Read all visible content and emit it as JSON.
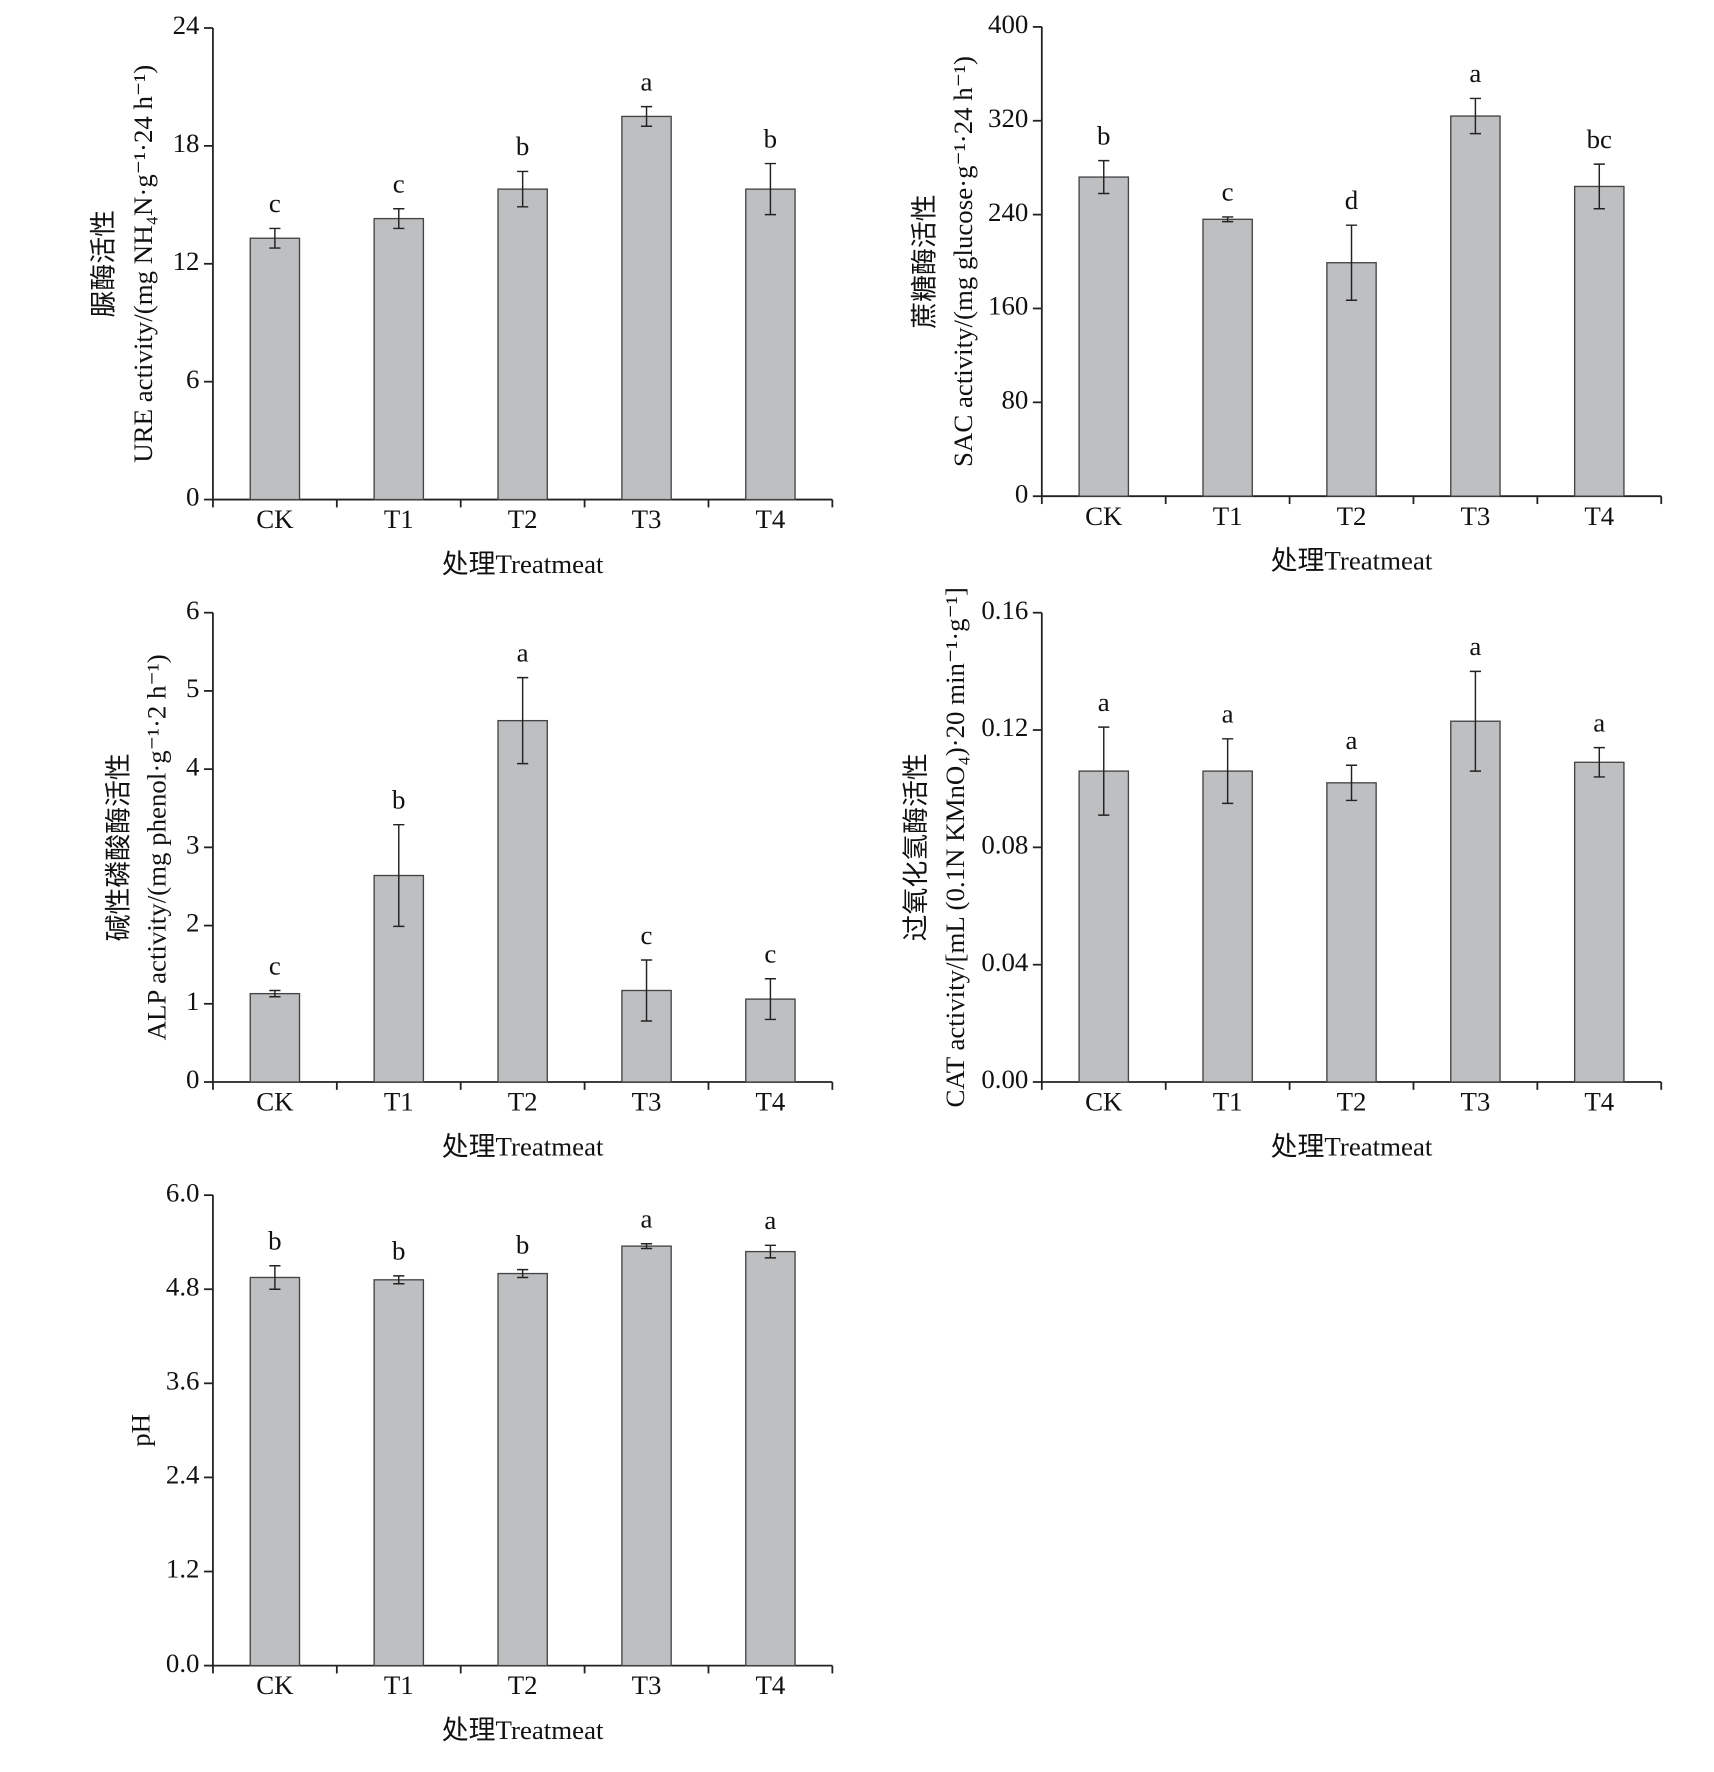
{
  "chart_data": [
    {
      "type": "bar",
      "y_label": [
        "脲酶活性",
        "URE activity/(mg NH₄N·g⁻¹·24 h⁻¹)"
      ],
      "x_label": "处理Treatmeat",
      "categories": [
        "CK",
        "T1",
        "T2",
        "T3",
        "T4"
      ],
      "values": [
        13.3,
        14.3,
        15.8,
        19.5,
        15.8
      ],
      "errors": [
        0.5,
        0.5,
        0.9,
        0.5,
        1.3
      ],
      "letters": [
        "c",
        "c",
        "b",
        "a",
        "b"
      ],
      "ylim": [
        0,
        24
      ],
      "yticks": [
        0,
        6,
        12,
        18,
        24
      ],
      "color": "#bebfc1"
    },
    {
      "type": "bar",
      "y_label": [
        "蔗糖酶活性",
        "SAC activity/(mg glucose·g⁻¹·24 h⁻¹)"
      ],
      "x_label": "处理Treatmeat",
      "categories": [
        "CK",
        "T1",
        "T2",
        "T3",
        "T4"
      ],
      "values": [
        272,
        236,
        199,
        324,
        264
      ],
      "errors": [
        14,
        2,
        32,
        15,
        19
      ],
      "letters": [
        "b",
        "c",
        "d",
        "a",
        "bc"
      ],
      "ylim": [
        0,
        400
      ],
      "yticks": [
        0,
        80,
        160,
        240,
        320,
        400
      ],
      "color": "#bebfc1"
    },
    {
      "type": "bar",
      "y_label": [
        "碱性磷酸酶活性",
        "ALP activity/(mg phenol·g⁻¹·2 h⁻¹)"
      ],
      "x_label": "处理Treatmeat",
      "categories": [
        "CK",
        "T1",
        "T2",
        "T3",
        "T4"
      ],
      "values": [
        1.13,
        2.64,
        4.62,
        1.17,
        1.06
      ],
      "errors": [
        0.04,
        0.65,
        0.55,
        0.39,
        0.26
      ],
      "letters": [
        "c",
        "b",
        "a",
        "c",
        "c"
      ],
      "ylim": [
        0,
        6
      ],
      "yticks": [
        0,
        1,
        2,
        3,
        4,
        5,
        6
      ],
      "color": "#bebfc1"
    },
    {
      "type": "bar",
      "y_label": [
        "过氧化氢酶活性",
        "CAT activity/[mL (0.1N KMnO₄)·20 min⁻¹·g⁻¹]"
      ],
      "x_label": "处理Treatmeat",
      "categories": [
        "CK",
        "T1",
        "T2",
        "T3",
        "T4"
      ],
      "values": [
        0.106,
        0.106,
        0.102,
        0.123,
        0.109
      ],
      "errors": [
        0.015,
        0.011,
        0.006,
        0.017,
        0.005
      ],
      "letters": [
        "a",
        "a",
        "a",
        "a",
        "a"
      ],
      "ylim": [
        0,
        0.16
      ],
      "yticks": [
        {
          "value": 0,
          "label": "0.00"
        },
        0.04,
        0.08,
        0.12,
        0.16
      ],
      "color": "#bebfc1"
    },
    {
      "type": "bar",
      "y_label": [
        "pH"
      ],
      "x_label": "处理Treatmeat",
      "categories": [
        "CK",
        "T1",
        "T2",
        "T3",
        "T4"
      ],
      "values": [
        4.95,
        4.92,
        5.0,
        5.35,
        5.28
      ],
      "errors": [
        0.15,
        0.05,
        0.05,
        0.03,
        0.08
      ],
      "letters": [
        "b",
        "b",
        "b",
        "a",
        "a"
      ],
      "ylim": [
        {
          "value": 0,
          "label": "0.0"
        },
        {
          "value": 6,
          "label": "6.0"
        }
      ],
      "yticks": [
        {
          "value": 0,
          "label": "0.0"
        },
        1.2,
        2.4,
        3.6,
        4.8,
        {
          "value": 6,
          "label": "6.0"
        }
      ],
      "color": "#bebfc1"
    }
  ]
}
